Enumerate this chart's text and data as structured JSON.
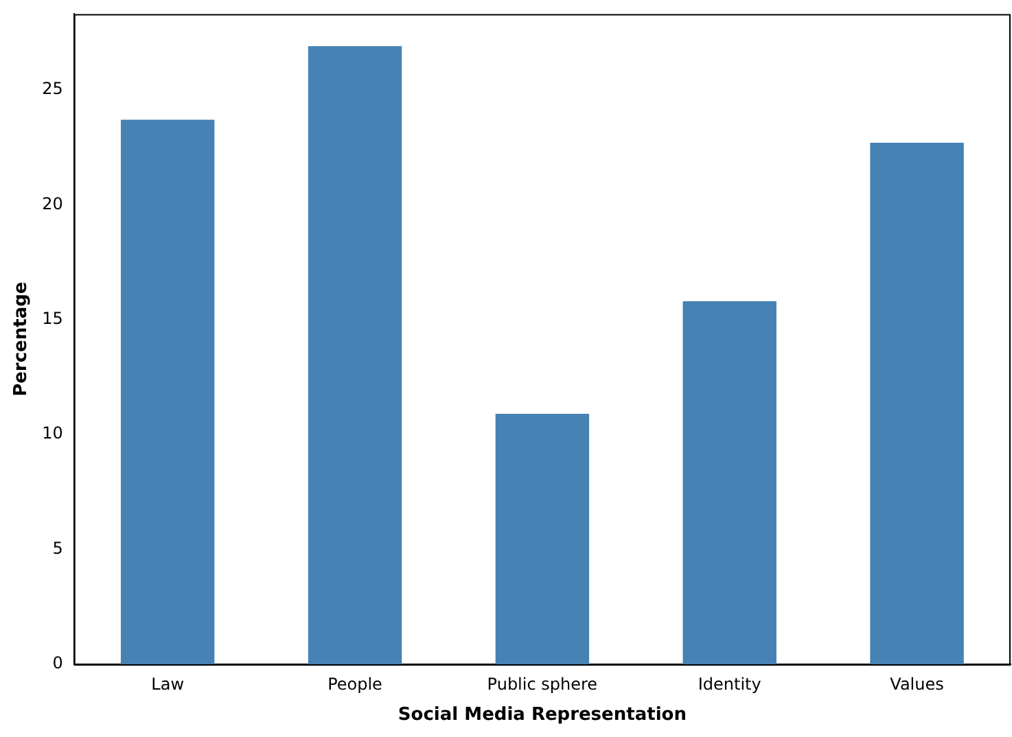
{
  "chart_data": {
    "type": "bar",
    "xlabel": "Social Media Representation",
    "ylabel": "Percentage",
    "categories": [
      "Law",
      "People",
      "Public sphere",
      "Identity",
      "Values"
    ],
    "values": [
      23.7,
      26.9,
      10.9,
      15.8,
      22.7
    ],
    "color": "#4682b4",
    "ylim": [
      0,
      28.3
    ],
    "yticks": [
      0,
      5,
      10,
      15,
      20,
      25
    ],
    "grid": false,
    "legend": false
  }
}
